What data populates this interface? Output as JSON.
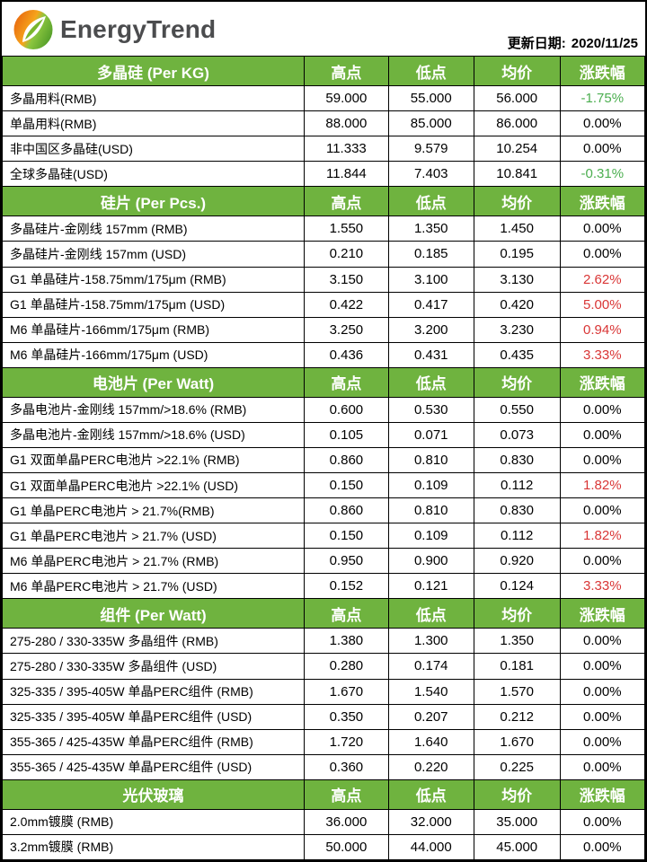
{
  "header": {
    "logo_text": "EnergyTrend",
    "update_label": "更新日期:",
    "update_date": "2020/11/25"
  },
  "colors": {
    "section_header_green": "#6fb33f",
    "change_up_red": "#d93636",
    "change_down_green": "#4bae4f",
    "border_black": "#000000",
    "logo_orange": "#f2951d",
    "logo_green": "#6fb33f"
  },
  "chart_data": {
    "type": "table",
    "columns": [
      "高点",
      "低点",
      "均价",
      "涨跌幅"
    ],
    "sections": [
      {
        "title": "多晶硅 (Per KG)",
        "rows": [
          {
            "label": "多晶用料(RMB)",
            "high": "59.000",
            "low": "55.000",
            "avg": "56.000",
            "change": "-1.75%",
            "trend": "down"
          },
          {
            "label": "单晶用料(RMB)",
            "high": "88.000",
            "low": "85.000",
            "avg": "86.000",
            "change": "0.00%",
            "trend": "flat"
          },
          {
            "label": "非中国区多晶硅(USD)",
            "high": "11.333",
            "low": "9.579",
            "avg": "10.254",
            "change": "0.00%",
            "trend": "flat"
          },
          {
            "label": "全球多晶硅(USD)",
            "high": "11.844",
            "low": "7.403",
            "avg": "10.841",
            "change": "-0.31%",
            "trend": "down"
          }
        ]
      },
      {
        "title": "硅片 (Per Pcs.)",
        "rows": [
          {
            "label": "多晶硅片-金刚线 157mm (RMB)",
            "high": "1.550",
            "low": "1.350",
            "avg": "1.450",
            "change": "0.00%",
            "trend": "flat"
          },
          {
            "label": "多晶硅片-金刚线 157mm (USD)",
            "high": "0.210",
            "low": "0.185",
            "avg": "0.195",
            "change": "0.00%",
            "trend": "flat"
          },
          {
            "label": "G1 单晶硅片-158.75mm/175μm (RMB)",
            "high": "3.150",
            "low": "3.100",
            "avg": "3.130",
            "change": "2.62%",
            "trend": "up"
          },
          {
            "label": "G1 单晶硅片-158.75mm/175μm (USD)",
            "high": "0.422",
            "low": "0.417",
            "avg": "0.420",
            "change": "5.00%",
            "trend": "up"
          },
          {
            "label": "M6 单晶硅片-166mm/175μm (RMB)",
            "high": "3.250",
            "low": "3.200",
            "avg": "3.230",
            "change": "0.94%",
            "trend": "up"
          },
          {
            "label": "M6 单晶硅片-166mm/175μm (USD)",
            "high": "0.436",
            "low": "0.431",
            "avg": "0.435",
            "change": "3.33%",
            "trend": "up"
          }
        ]
      },
      {
        "title": "电池片 (Per Watt)",
        "rows": [
          {
            "label": "多晶电池片-金刚线 157mm/>18.6% (RMB)",
            "high": "0.600",
            "low": "0.530",
            "avg": "0.550",
            "change": "0.00%",
            "trend": "flat"
          },
          {
            "label": "多晶电池片-金刚线 157mm/>18.6% (USD)",
            "high": "0.105",
            "low": "0.071",
            "avg": "0.073",
            "change": "0.00%",
            "trend": "flat"
          },
          {
            "label": "G1 双面单晶PERC电池片  >22.1% (RMB)",
            "high": "0.860",
            "low": "0.810",
            "avg": "0.830",
            "change": "0.00%",
            "trend": "flat"
          },
          {
            "label": "G1 双面单晶PERC电池片  >22.1% (USD)",
            "high": "0.150",
            "low": "0.109",
            "avg": "0.112",
            "change": "1.82%",
            "trend": "up"
          },
          {
            "label": "G1 单晶PERC电池片  > 21.7%(RMB)",
            "high": "0.860",
            "low": "0.810",
            "avg": "0.830",
            "change": "0.00%",
            "trend": "flat"
          },
          {
            "label": "G1 单晶PERC电池片  > 21.7% (USD)",
            "high": "0.150",
            "low": "0.109",
            "avg": "0.112",
            "change": "1.82%",
            "trend": "up"
          },
          {
            "label": "M6 单晶PERC电池片 > 21.7% (RMB)",
            "high": "0.950",
            "low": "0.900",
            "avg": "0.920",
            "change": "0.00%",
            "trend": "flat"
          },
          {
            "label": "M6 单晶PERC电池片 > 21.7% (USD)",
            "high": "0.152",
            "low": "0.121",
            "avg": "0.124",
            "change": "3.33%",
            "trend": "up"
          }
        ]
      },
      {
        "title": "组件 (Per Watt)",
        "rows": [
          {
            "label": "275-280 / 330-335W 多晶组件 (RMB)",
            "high": "1.380",
            "low": "1.300",
            "avg": "1.350",
            "change": "0.00%",
            "trend": "flat"
          },
          {
            "label": "275-280 / 330-335W 多晶组件 (USD)",
            "high": "0.280",
            "low": "0.174",
            "avg": "0.181",
            "change": "0.00%",
            "trend": "flat"
          },
          {
            "label": "325-335 / 395-405W 单晶PERC组件 (RMB)",
            "high": "1.670",
            "low": "1.540",
            "avg": "1.570",
            "change": "0.00%",
            "trend": "flat"
          },
          {
            "label": "325-335 / 395-405W 单晶PERC组件 (USD)",
            "high": "0.350",
            "low": "0.207",
            "avg": "0.212",
            "change": "0.00%",
            "trend": "flat"
          },
          {
            "label": "355-365 / 425-435W 单晶PERC组件 (RMB)",
            "high": "1.720",
            "low": "1.640",
            "avg": "1.670",
            "change": "0.00%",
            "trend": "flat"
          },
          {
            "label": "355-365 / 425-435W 单晶PERC组件 (USD)",
            "high": "0.360",
            "low": "0.220",
            "avg": "0.225",
            "change": "0.00%",
            "trend": "flat"
          }
        ]
      },
      {
        "title": "光伏玻璃",
        "rows": [
          {
            "label": "2.0mm镀膜 (RMB)",
            "high": "36.000",
            "low": "32.000",
            "avg": "35.000",
            "change": "0.00%",
            "trend": "flat"
          },
          {
            "label": "3.2mm镀膜 (RMB)",
            "high": "50.000",
            "low": "44.000",
            "avg": "45.000",
            "change": "0.00%",
            "trend": "flat"
          }
        ]
      }
    ]
  }
}
